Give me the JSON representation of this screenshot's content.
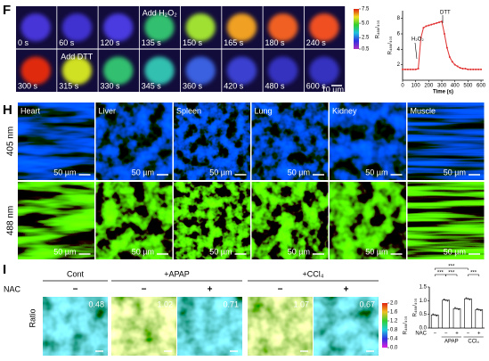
{
  "panel_f": {
    "label": "F",
    "frames": [
      "0 s",
      "60 s",
      "120 s",
      "135 s",
      "150 s",
      "165 s",
      "180 s",
      "240 s",
      "300 s",
      "315 s",
      "330 s",
      "345 s",
      "360 s",
      "420 s",
      "480 s",
      "600 s"
    ],
    "annotations": [
      "Add H₂O₂",
      "Add DTT"
    ],
    "scale_bar": "10 µm",
    "colorbar": {
      "label": "R₄₈₈/₄₀₅",
      "lim": [
        0.5,
        7.5
      ],
      "ticks": [
        7.5,
        {
          "value": 5,
          "label": "5.0"
        },
        2.5,
        0.5
      ]
    },
    "chart": {
      "type": "line",
      "y_label": "R₄₈₈/₄₀₅",
      "x_label": "Time (s)",
      "annotations": [
        "H₂O₂",
        "DTT"
      ],
      "color": "#e03030",
      "x": [
        0,
        20,
        40,
        60,
        80,
        100,
        120,
        140,
        160,
        180,
        200,
        220,
        240,
        260,
        280,
        300,
        320,
        340,
        360,
        380,
        400,
        420,
        440,
        460,
        480,
        500,
        520,
        540,
        560,
        580,
        600
      ],
      "values": [
        1.4,
        1.4,
        1.4,
        1.4,
        1.4,
        1.4,
        1.5,
        5.5,
        6.8,
        7.0,
        7.1,
        7.2,
        7.3,
        7.4,
        7.5,
        7.6,
        6.0,
        4.2,
        3.0,
        2.4,
        2.0,
        1.8,
        1.6,
        1.5,
        1.5,
        1.4,
        1.4,
        1.4,
        1.4,
        1.4,
        1.4
      ],
      "xlim": [
        0,
        620
      ],
      "ylim": [
        0,
        9
      ],
      "xticks": [
        0,
        100,
        200,
        300,
        400,
        500,
        600
      ],
      "yticks": [
        2,
        4,
        6,
        8
      ]
    }
  },
  "panel_h": {
    "label": "H",
    "tissues": [
      "Heart",
      "Liver",
      "Spleen",
      "Lung",
      "Kidney",
      "Muscle"
    ],
    "rows": [
      "405 nm",
      "488 nm"
    ],
    "scale_bar": "50 µm"
  },
  "panel_i": {
    "label": "I",
    "nac_label": "NAC",
    "groups": [
      "Cont",
      "+APAP",
      "+CCl₄"
    ],
    "nac": [
      "−",
      "−",
      "+",
      "−",
      "+"
    ],
    "row_label": "Ratio",
    "ratios": [
      0.48,
      1.02,
      0.71,
      1.07,
      0.67
    ],
    "colorbar": {
      "label": "R₄₈₈/₄₀₅",
      "lim": [
        0,
        2
      ],
      "ticks": [
        {
          "value": 2,
          "label": "2.0"
        },
        1.6,
        1.2,
        0.8,
        0.4,
        {
          "value": 0,
          "label": "0.0"
        }
      ]
    },
    "chart": {
      "type": "bar",
      "y_label": "R₄₈₈/₄₀₅",
      "nac_label": "NAC",
      "categories": [
        "−",
        "−",
        "+",
        "−",
        "+"
      ],
      "groups": [
        "APAP",
        "CCl₄"
      ],
      "values": [
        0.48,
        1.02,
        0.71,
        1.07,
        0.67
      ],
      "ylim": [
        0,
        1.5
      ],
      "yticks": [
        {
          "value": 0,
          "label": "0.0"
        },
        0.5,
        {
          "value": 1,
          "label": "1.0"
        },
        1.5
      ],
      "significance": [
        "***",
        "***",
        "***",
        "***"
      ]
    }
  }
}
